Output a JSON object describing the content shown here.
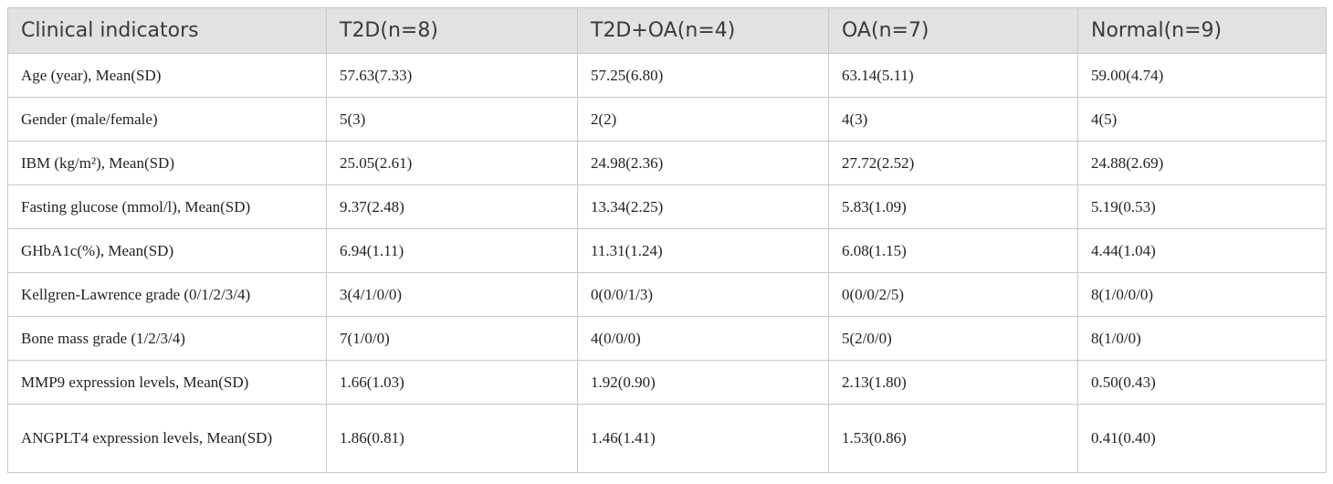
{
  "table": {
    "columns": [
      "Clinical indicators",
      "T2D(n=8)",
      "T2D+OA(n=4)",
      "OA(n=7)",
      "Normal(n=9)"
    ],
    "rows": [
      [
        "Age (year), Mean(SD)",
        "57.63(7.33)",
        "57.25(6.80)",
        "63.14(5.11)",
        "59.00(4.74)"
      ],
      [
        "Gender (male/female)",
        "5(3)",
        "2(2)",
        "4(3)",
        "4(5)"
      ],
      [
        "IBM (kg/m²), Mean(SD)",
        "25.05(2.61)",
        "24.98(2.36)",
        "27.72(2.52)",
        "24.88(2.69)"
      ],
      [
        "Fasting glucose (mmol/l), Mean(SD)",
        "9.37(2.48)",
        "13.34(2.25)",
        "5.83(1.09)",
        "5.19(0.53)"
      ],
      [
        "GHbA1c(%), Mean(SD)",
        "6.94(1.11)",
        "11.31(1.24)",
        "6.08(1.15)",
        "4.44(1.04)"
      ],
      [
        "Kellgren-Lawrence grade (0/1/2/3/4)",
        "3(4/1/0/0)",
        "0(0/0/1/3)",
        "0(0/0/2/5)",
        "8(1/0/0/0)"
      ],
      [
        "Bone mass grade (1/2/3/4)",
        "7(1/0/0)",
        "4(0/0/0)",
        "5(2/0/0)",
        "8(1/0/0)"
      ],
      [
        "MMP9 expression levels, Mean(SD)",
        "1.66(1.03)",
        "1.92(0.90)",
        "2.13(1.80)",
        "0.50(0.43)"
      ],
      [
        "ANGPLT4 expression levels, Mean(SD)",
        "1.86(0.81)",
        "1.46(1.41)",
        "1.53(0.86)",
        "0.41(0.40)"
      ]
    ]
  }
}
